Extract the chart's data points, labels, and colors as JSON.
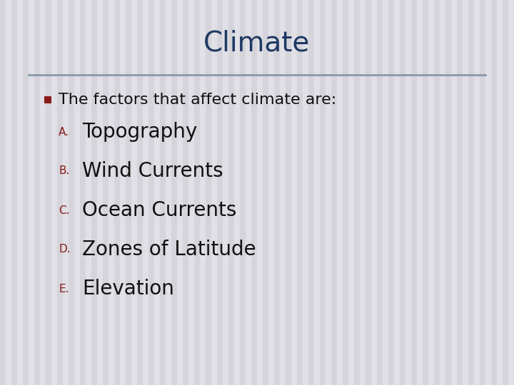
{
  "title": "Climate",
  "title_color": "#1F3864",
  "title_fontsize": 28,
  "background_color": "#E0E0E6",
  "stripe_color": "#CACAD0",
  "separator_color": "#8899AA",
  "bullet_color": "#8B1A1A",
  "bullet_text": "The factors that affect climate are:",
  "bullet_fontsize": 16,
  "label_color": "#8B1A1A",
  "label_fontsize": 11,
  "item_fontsize": 20,
  "item_color": "#111111",
  "items": [
    {
      "label": "A.",
      "text": "Topography"
    },
    {
      "label": "B.",
      "text": "Wind Currents"
    },
    {
      "label": "C.",
      "text": "Ocean Currents"
    },
    {
      "label": "D.",
      "text": "Zones of Latitude"
    },
    {
      "label": "E.",
      "text": "Elevation"
    }
  ]
}
